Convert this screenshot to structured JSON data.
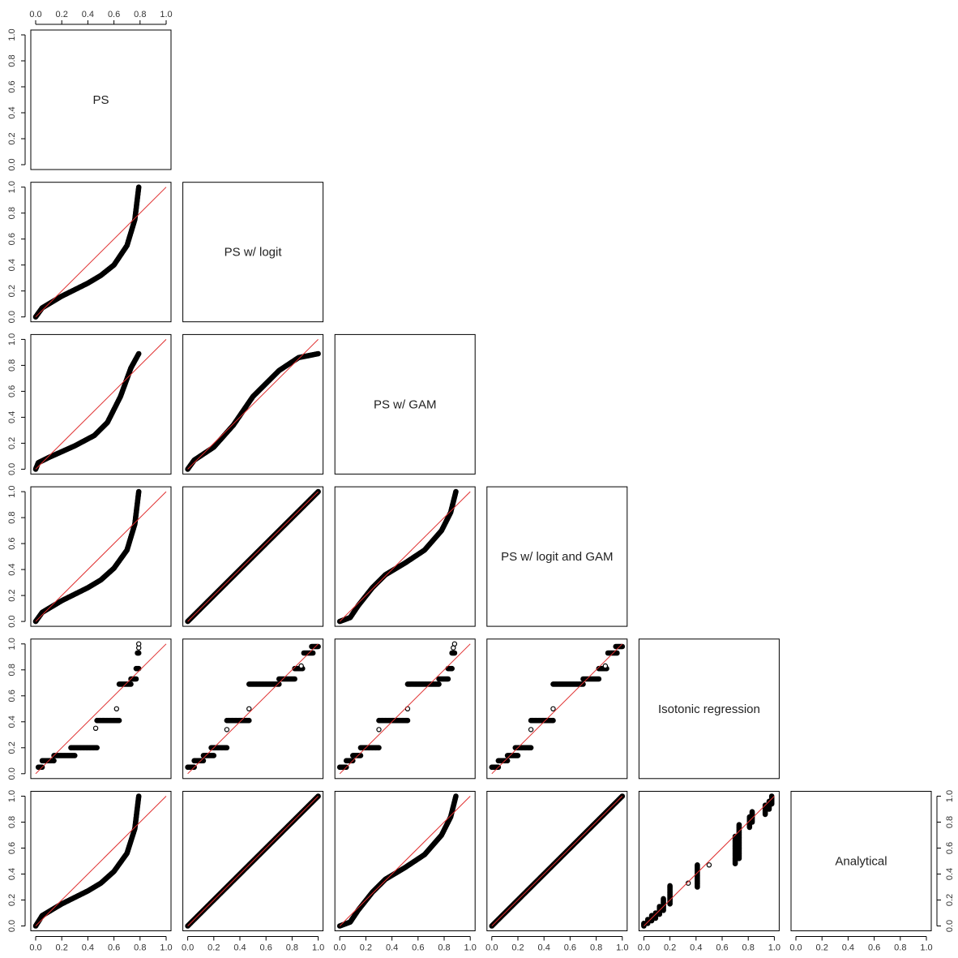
{
  "chart_data": {
    "type": "scatter",
    "kind": "pairs-matrix",
    "variables": [
      "PS",
      "PS w/ logit",
      "PS w/ GAM",
      "PS w/ logit and GAM",
      "Isotonic regression",
      "Analytical"
    ],
    "ticks": [
      "0.0",
      "0.2",
      "0.4",
      "0.6",
      "0.8",
      "1.0"
    ],
    "axis_range": [
      0,
      1
    ],
    "reference_line": {
      "slope": 1,
      "intercept": 0,
      "color": "#e03030"
    },
    "point_color": "#000000",
    "panels": [
      {
        "row": 1,
        "col": 0,
        "curve": [
          [
            0,
            0
          ],
          [
            0.05,
            0.07
          ],
          [
            0.2,
            0.16
          ],
          [
            0.4,
            0.26
          ],
          [
            0.5,
            0.32
          ],
          [
            0.6,
            0.4
          ],
          [
            0.7,
            0.55
          ],
          [
            0.76,
            0.75
          ],
          [
            0.79,
            1.0
          ]
        ]
      },
      {
        "row": 2,
        "col": 0,
        "curve": [
          [
            0,
            0
          ],
          [
            0.02,
            0.05
          ],
          [
            0.1,
            0.09
          ],
          [
            0.3,
            0.18
          ],
          [
            0.45,
            0.26
          ],
          [
            0.55,
            0.36
          ],
          [
            0.65,
            0.56
          ],
          [
            0.73,
            0.78
          ],
          [
            0.79,
            0.89
          ]
        ]
      },
      {
        "row": 2,
        "col": 1,
        "curve": [
          [
            0,
            0
          ],
          [
            0.05,
            0.07
          ],
          [
            0.2,
            0.17
          ],
          [
            0.35,
            0.34
          ],
          [
            0.5,
            0.56
          ],
          [
            0.7,
            0.76
          ],
          [
            0.85,
            0.86
          ],
          [
            1.0,
            0.89
          ]
        ]
      },
      {
        "row": 3,
        "col": 0,
        "curve": [
          [
            0,
            0
          ],
          [
            0.05,
            0.07
          ],
          [
            0.2,
            0.16
          ],
          [
            0.4,
            0.26
          ],
          [
            0.5,
            0.32
          ],
          [
            0.6,
            0.41
          ],
          [
            0.7,
            0.55
          ],
          [
            0.76,
            0.75
          ],
          [
            0.79,
            1.0
          ]
        ]
      },
      {
        "row": 3,
        "col": 1,
        "curve": [
          [
            0,
            0
          ],
          [
            1.0,
            1.0
          ]
        ]
      },
      {
        "row": 3,
        "col": 2,
        "curve": [
          [
            0,
            0
          ],
          [
            0.08,
            0.03
          ],
          [
            0.14,
            0.12
          ],
          [
            0.25,
            0.26
          ],
          [
            0.35,
            0.36
          ],
          [
            0.5,
            0.45
          ],
          [
            0.65,
            0.55
          ],
          [
            0.78,
            0.7
          ],
          [
            0.85,
            0.84
          ],
          [
            0.89,
            1.0
          ]
        ]
      },
      {
        "row": 4,
        "col": 0,
        "steps": [
          [
            0.02,
            0.05,
            0.05
          ],
          [
            0.05,
            0.14,
            0.1
          ],
          [
            0.14,
            0.3,
            0.14
          ],
          [
            0.27,
            0.47,
            0.2
          ],
          [
            0.47,
            0.64,
            0.41
          ],
          [
            0.64,
            0.73,
            0.69
          ],
          [
            0.73,
            0.77,
            0.73
          ],
          [
            0.77,
            0.79,
            0.81
          ],
          [
            0.78,
            0.79,
            0.93
          ]
        ],
        "isolated": [
          [
            0.46,
            0.35
          ],
          [
            0.62,
            0.5
          ],
          [
            0.79,
            0.97
          ],
          [
            0.79,
            1.0
          ]
        ]
      },
      {
        "row": 4,
        "col": 1,
        "steps": [
          [
            0,
            0.05,
            0.05
          ],
          [
            0.05,
            0.12,
            0.1
          ],
          [
            0.12,
            0.2,
            0.14
          ],
          [
            0.18,
            0.3,
            0.2
          ],
          [
            0.3,
            0.47,
            0.41
          ],
          [
            0.47,
            0.7,
            0.69
          ],
          [
            0.7,
            0.82,
            0.73
          ],
          [
            0.82,
            0.88,
            0.81
          ],
          [
            0.89,
            0.96,
            0.93
          ],
          [
            0.95,
            1.0,
            0.98
          ]
        ],
        "isolated": [
          [
            0.3,
            0.34
          ],
          [
            0.47,
            0.5
          ],
          [
            0.87,
            0.83
          ]
        ]
      },
      {
        "row": 4,
        "col": 2,
        "steps": [
          [
            0,
            0.05,
            0.05
          ],
          [
            0.05,
            0.1,
            0.1
          ],
          [
            0.1,
            0.16,
            0.14
          ],
          [
            0.16,
            0.3,
            0.2
          ],
          [
            0.3,
            0.52,
            0.41
          ],
          [
            0.52,
            0.76,
            0.69
          ],
          [
            0.76,
            0.83,
            0.73
          ],
          [
            0.83,
            0.86,
            0.81
          ],
          [
            0.86,
            0.88,
            0.93
          ]
        ],
        "isolated": [
          [
            0.3,
            0.34
          ],
          [
            0.52,
            0.5
          ],
          [
            0.87,
            0.97
          ],
          [
            0.88,
            1.0
          ]
        ]
      },
      {
        "row": 4,
        "col": 3,
        "steps": [
          [
            0,
            0.05,
            0.05
          ],
          [
            0.05,
            0.12,
            0.1
          ],
          [
            0.12,
            0.2,
            0.14
          ],
          [
            0.18,
            0.3,
            0.2
          ],
          [
            0.3,
            0.47,
            0.41
          ],
          [
            0.47,
            0.7,
            0.69
          ],
          [
            0.7,
            0.82,
            0.73
          ],
          [
            0.82,
            0.88,
            0.81
          ],
          [
            0.89,
            0.96,
            0.93
          ],
          [
            0.95,
            1.0,
            0.98
          ]
        ],
        "isolated": [
          [
            0.3,
            0.34
          ],
          [
            0.47,
            0.5
          ],
          [
            0.87,
            0.83
          ]
        ]
      },
      {
        "row": 5,
        "col": 0,
        "curve": [
          [
            0,
            0
          ],
          [
            0.05,
            0.08
          ],
          [
            0.2,
            0.17
          ],
          [
            0.4,
            0.27
          ],
          [
            0.5,
            0.33
          ],
          [
            0.6,
            0.42
          ],
          [
            0.7,
            0.56
          ],
          [
            0.76,
            0.75
          ],
          [
            0.79,
            1.0
          ]
        ]
      },
      {
        "row": 5,
        "col": 1,
        "curve": [
          [
            0,
            0
          ],
          [
            1.0,
            1.0
          ]
        ]
      },
      {
        "row": 5,
        "col": 2,
        "curve": [
          [
            0,
            0
          ],
          [
            0.08,
            0.03
          ],
          [
            0.14,
            0.12
          ],
          [
            0.25,
            0.26
          ],
          [
            0.35,
            0.36
          ],
          [
            0.5,
            0.45
          ],
          [
            0.65,
            0.55
          ],
          [
            0.78,
            0.7
          ],
          [
            0.85,
            0.84
          ],
          [
            0.89,
            1.0
          ]
        ]
      },
      {
        "row": 5,
        "col": 3,
        "curve": [
          [
            0,
            0
          ],
          [
            1.0,
            1.0
          ]
        ]
      },
      {
        "row": 5,
        "col": 4,
        "vsegs": [
          [
            0,
            0,
            0.02
          ],
          [
            0.03,
            0.02,
            0.05
          ],
          [
            0.06,
            0.04,
            0.08
          ],
          [
            0.09,
            0.06,
            0.1
          ],
          [
            0.12,
            0.09,
            0.15
          ],
          [
            0.15,
            0.12,
            0.21
          ],
          [
            0.2,
            0.17,
            0.31
          ],
          [
            0.41,
            0.3,
            0.47
          ],
          [
            0.7,
            0.48,
            0.69
          ],
          [
            0.73,
            0.52,
            0.78
          ],
          [
            0.81,
            0.76,
            0.84
          ],
          [
            0.83,
            0.8,
            0.88
          ],
          [
            0.93,
            0.86,
            0.93
          ],
          [
            0.96,
            0.9,
            0.96
          ],
          [
            0.98,
            0.94,
            1.0
          ]
        ],
        "isolated": [
          [
            0.34,
            0.33
          ],
          [
            0.5,
            0.47
          ]
        ]
      }
    ]
  }
}
